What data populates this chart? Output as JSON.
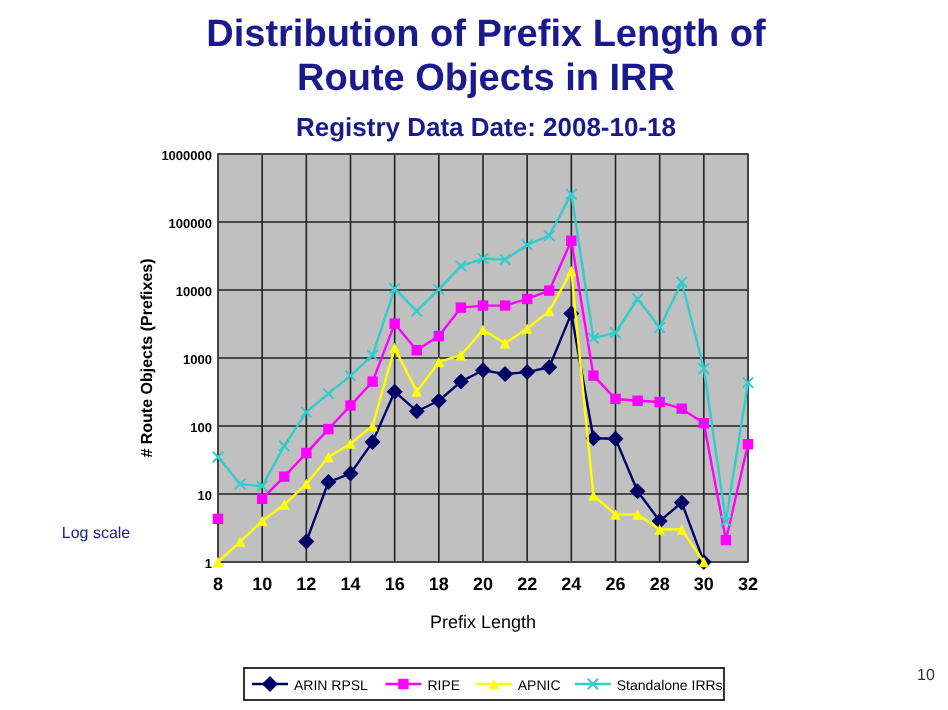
{
  "chart_data": {
    "type": "line",
    "title": "Distribution of Prefix Length of Route Objects in IRR",
    "subtitle": "Registry Data Date: 2008-10-18",
    "xlabel": "Prefix Length",
    "ylabel": "# Route Objects (Prefixes)",
    "x": [
      8,
      9,
      10,
      11,
      12,
      13,
      14,
      15,
      16,
      17,
      18,
      19,
      20,
      21,
      22,
      23,
      24,
      25,
      26,
      27,
      28,
      29,
      30,
      31,
      32
    ],
    "series": [
      {
        "name": "ARIN RPSL",
        "color": "#000066",
        "marker": "diamond",
        "values": [
          null,
          null,
          null,
          null,
          2,
          15,
          20,
          58,
          320,
          165,
          235,
          450,
          660,
          580,
          620,
          730,
          4500,
          66,
          65,
          11,
          4,
          7.5,
          1,
          null,
          null
        ]
      },
      {
        "name": "RIPE",
        "color": "#ff00ff",
        "marker": "square",
        "values": [
          4.3,
          null,
          8.5,
          18,
          40,
          90,
          200,
          450,
          3200,
          1300,
          2100,
          5500,
          5900,
          5900,
          7400,
          9800,
          53000,
          550,
          250,
          235,
          225,
          180,
          110,
          2.1,
          54
        ]
      },
      {
        "name": "APNIC",
        "color": "#ffff00",
        "marker": "triangle",
        "values": [
          1,
          2,
          4,
          7,
          14,
          35,
          55,
          100,
          1400,
          320,
          870,
          1100,
          2600,
          1650,
          2700,
          4900,
          19000,
          9.5,
          5,
          5,
          3,
          3,
          1,
          null,
          null
        ]
      },
      {
        "name": "Standalone IRRs",
        "color": "#33cccc",
        "marker": "cross",
        "values": [
          35,
          14,
          13,
          51,
          160,
          300,
          550,
          1100,
          10500,
          4900,
          10200,
          22500,
          29000,
          28000,
          46000,
          63000,
          257000,
          1960,
          2350,
          7400,
          2800,
          13000,
          700,
          4,
          435
        ]
      }
    ],
    "xlim": [
      8,
      32
    ],
    "xticks": [
      8,
      10,
      12,
      14,
      16,
      18,
      20,
      22,
      24,
      26,
      28,
      30,
      32
    ],
    "ylim": [
      1,
      1000000
    ],
    "yticks": [
      1,
      10,
      100,
      1000,
      10000,
      100000,
      1000000
    ],
    "log": true,
    "grid": true,
    "legend": "bottom",
    "annotations": [
      "Log scale",
      "10"
    ]
  }
}
